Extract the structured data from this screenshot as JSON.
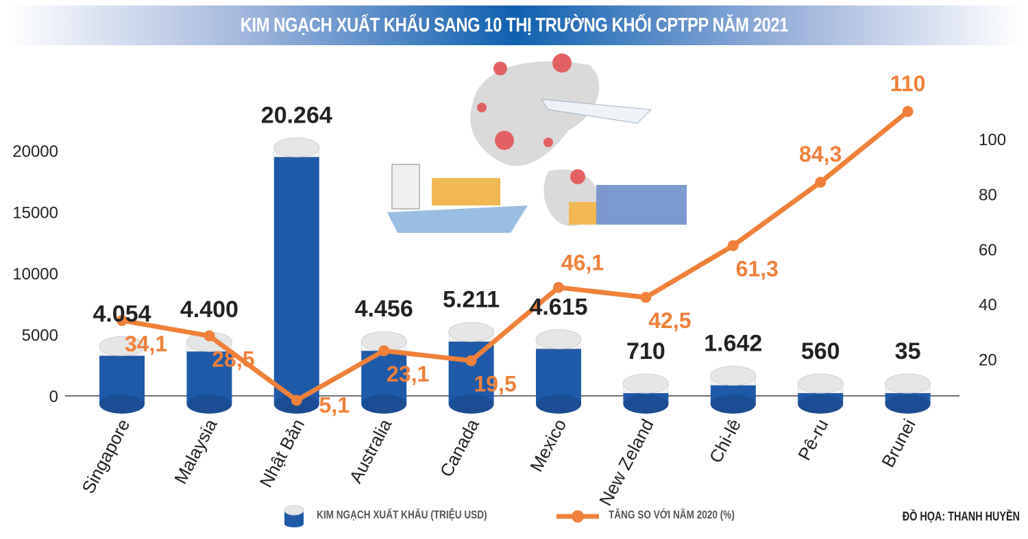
{
  "title": "KIM NGẠCH XUẤT KHẨU SANG 10 THỊ TRƯỜNG KHỐI CPTPP NĂM 2021",
  "credit": "ĐỒ HỌA: THANH HUYỀN",
  "colors": {
    "bar": "#1f5aa8",
    "cap": "#e6e6e6",
    "line": "#f0803a",
    "label": "#222222"
  },
  "chart_data": {
    "type": "bar+line",
    "categories": [
      "Singapore",
      "Malaysia",
      "Nhật Bản",
      "Australia",
      "Canada",
      "Mexico",
      "New Zeland",
      "Chi-lê",
      "Pê-ru",
      "Brunei"
    ],
    "series": [
      {
        "name": "KIM NGẠCH XUẤT KHẨU (TRIỆU USD)",
        "type": "bar",
        "axis": "left",
        "values": [
          4054,
          4400,
          20264,
          4456,
          5211,
          4615,
          710,
          1642,
          560,
          35
        ],
        "labels": [
          "4.054",
          "4.400",
          "20.264",
          "4.456",
          "5.211",
          "4.615",
          "710",
          "1.642",
          "560",
          "35"
        ]
      },
      {
        "name": "TĂNG SO VỚI NĂM 2020 (%)",
        "type": "line",
        "axis": "right",
        "values": [
          34.1,
          28.5,
          5.1,
          23.1,
          19.5,
          46.1,
          42.5,
          61.3,
          84.3,
          110
        ],
        "labels": [
          "34,1",
          "28,5",
          "5,1",
          "23,1",
          "19,5",
          "46,1",
          "42,5",
          "61,3",
          "84,3",
          "110"
        ]
      }
    ],
    "left_axis": {
      "ticks": [
        "0",
        "5000",
        "10000",
        "15000",
        "20000"
      ],
      "tick_values": [
        0,
        5000,
        10000,
        15000,
        20000
      ],
      "range": [
        0,
        20000
      ]
    },
    "right_axis": {
      "ticks": [
        "20",
        "40",
        "60",
        "80",
        "100"
      ],
      "tick_values": [
        20,
        40,
        60,
        80,
        100
      ],
      "range": [
        0,
        100
      ]
    },
    "legend": "bottom"
  }
}
